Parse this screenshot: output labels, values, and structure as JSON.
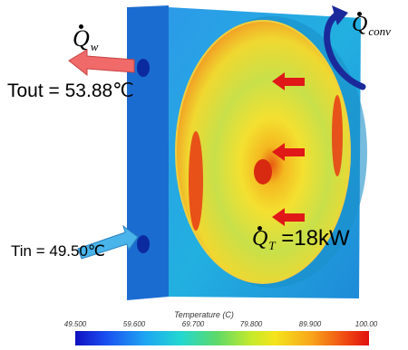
{
  "labels": {
    "q_w": "Q",
    "q_w_sub": "w",
    "q_conv": "Q",
    "q_conv_sub": "conv",
    "q_t": "Q",
    "q_t_sub": "T",
    "q_t_value": " =18kW",
    "t_out": "Tout = 53.88℃",
    "t_in": "Tin = 49.50℃"
  },
  "legend": {
    "title": "Temperature (C)",
    "ticks": [
      "49.500",
      "59.600",
      "69.700",
      "79.800",
      "89.900",
      "100.00"
    ],
    "range": [
      49.5,
      100.0
    ],
    "colors": [
      "#1010c0",
      "#1ea6f2",
      "#22d8d0",
      "#5cd96a",
      "#f4e41c",
      "#f8a81a",
      "#e01010"
    ]
  },
  "colors": {
    "block_front": "#1e7fd8",
    "block_side": "#1660c0",
    "arrow_out": "#f06a6a",
    "arrow_in": "#49b4ea",
    "arrow_heat": "#e01818",
    "arrow_conv": "#1a2a9a"
  }
}
